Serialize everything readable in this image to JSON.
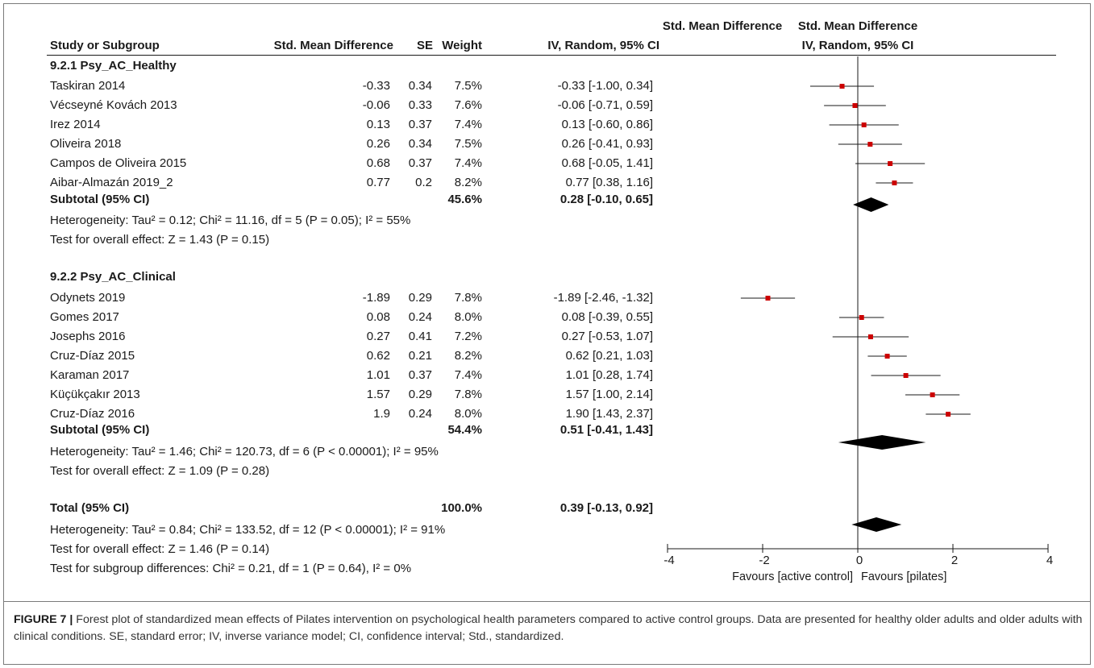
{
  "chart_data": {
    "type": "forest",
    "headers": {
      "study": "Study or Subgroup",
      "smd": "Std. Mean Difference",
      "se": "SE",
      "weight": "Weight",
      "ci_top": "Std. Mean Difference",
      "ci_bottom": "IV, Random, 95% CI",
      "plot_top": "Std. Mean Difference",
      "plot_bottom": "IV, Random, 95% CI"
    },
    "subgroups": [
      {
        "title": "9.2.1 Psy_AC_Healthy",
        "studies": [
          {
            "name": "Taskiran 2014",
            "smd": "-0.33",
            "se": "0.34",
            "weight": "7.5%",
            "ci_text": "-0.33 [-1.00, 0.34]",
            "est": -0.33,
            "lo": -1.0,
            "hi": 0.34
          },
          {
            "name": "Vécseyné Kovách 2013",
            "smd": "-0.06",
            "se": "0.33",
            "weight": "7.6%",
            "ci_text": "-0.06 [-0.71, 0.59]",
            "est": -0.06,
            "lo": -0.71,
            "hi": 0.59
          },
          {
            "name": "Irez 2014",
            "smd": "0.13",
            "se": "0.37",
            "weight": "7.4%",
            "ci_text": "0.13 [-0.60, 0.86]",
            "est": 0.13,
            "lo": -0.6,
            "hi": 0.86
          },
          {
            "name": "Oliveira 2018",
            "smd": "0.26",
            "se": "0.34",
            "weight": "7.5%",
            "ci_text": "0.26 [-0.41, 0.93]",
            "est": 0.26,
            "lo": -0.41,
            "hi": 0.93
          },
          {
            "name": "Campos de Oliveira 2015",
            "smd": "0.68",
            "se": "0.37",
            "weight": "7.4%",
            "ci_text": "0.68 [-0.05, 1.41]",
            "est": 0.68,
            "lo": -0.05,
            "hi": 1.41
          },
          {
            "name": "Aibar-Almazán 2019_2",
            "smd": "0.77",
            "se": "0.2",
            "weight": "8.2%",
            "ci_text": "0.77 [0.38, 1.16]",
            "est": 0.77,
            "lo": 0.38,
            "hi": 1.16
          }
        ],
        "subtotal": {
          "label": "Subtotal (95% CI)",
          "weight": "45.6%",
          "ci_text": "0.28 [-0.10, 0.65]",
          "est": 0.28,
          "lo": -0.1,
          "hi": 0.65
        },
        "heterogeneity": "Heterogeneity: Tau² = 0.12; Chi² = 11.16, df = 5 (P = 0.05); I² = 55%",
        "overall": "Test for overall effect: Z = 1.43 (P = 0.15)"
      },
      {
        "title": "9.2.2 Psy_AC_Clinical",
        "studies": [
          {
            "name": "Odynets 2019",
            "smd": "-1.89",
            "se": "0.29",
            "weight": "7.8%",
            "ci_text": "-1.89 [-2.46, -1.32]",
            "est": -1.89,
            "lo": -2.46,
            "hi": -1.32
          },
          {
            "name": "Gomes 2017",
            "smd": "0.08",
            "se": "0.24",
            "weight": "8.0%",
            "ci_text": "0.08 [-0.39, 0.55]",
            "est": 0.08,
            "lo": -0.39,
            "hi": 0.55
          },
          {
            "name": "Josephs 2016",
            "smd": "0.27",
            "se": "0.41",
            "weight": "7.2%",
            "ci_text": "0.27 [-0.53, 1.07]",
            "est": 0.27,
            "lo": -0.53,
            "hi": 1.07
          },
          {
            "name": "Cruz-Díaz 2015",
            "smd": "0.62",
            "se": "0.21",
            "weight": "8.2%",
            "ci_text": "0.62 [0.21, 1.03]",
            "est": 0.62,
            "lo": 0.21,
            "hi": 1.03
          },
          {
            "name": "Karaman 2017",
            "smd": "1.01",
            "se": "0.37",
            "weight": "7.4%",
            "ci_text": "1.01 [0.28, 1.74]",
            "est": 1.01,
            "lo": 0.28,
            "hi": 1.74
          },
          {
            "name": "Küçükçakır 2013",
            "smd": "1.57",
            "se": "0.29",
            "weight": "7.8%",
            "ci_text": "1.57 [1.00, 2.14]",
            "est": 1.57,
            "lo": 1.0,
            "hi": 2.14
          },
          {
            "name": "Cruz-Díaz 2016",
            "smd": "1.9",
            "se": "0.24",
            "weight": "8.0%",
            "ci_text": "1.90 [1.43, 2.37]",
            "est": 1.9,
            "lo": 1.43,
            "hi": 2.37
          }
        ],
        "subtotal": {
          "label": "Subtotal (95% CI)",
          "weight": "54.4%",
          "ci_text": "0.51 [-0.41, 1.43]",
          "est": 0.51,
          "lo": -0.41,
          "hi": 1.43
        },
        "heterogeneity": "Heterogeneity: Tau² = 1.46; Chi² = 120.73, df = 6 (P < 0.00001); I² = 95%",
        "overall": "Test for overall effect: Z = 1.09 (P = 0.28)"
      }
    ],
    "total": {
      "label": "Total (95% CI)",
      "weight": "100.0%",
      "ci_text": "0.39 [-0.13, 0.92]",
      "est": 0.39,
      "lo": -0.13,
      "hi": 0.92,
      "heterogeneity": "Heterogeneity: Tau² = 0.84; Chi² = 133.52, df = 12 (P < 0.00001); I² = 91%",
      "overall": "Test for overall effect: Z = 1.46 (P = 0.14)",
      "subgroup_diff": "Test for subgroup differences: Chi² = 0.21, df = 1 (P = 0.64), I² = 0%"
    },
    "x_axis": {
      "range": [
        -4,
        4
      ],
      "ticks": [
        -4,
        -2,
        0,
        2,
        4
      ],
      "tick_labels": [
        "-4",
        "-2",
        "0",
        "2",
        "4"
      ],
      "label_left": "Favours [active control]",
      "label_right": "Favours [pilates]"
    },
    "colors": {
      "marker": "#cc0000",
      "ink": "#1a1a1a"
    }
  },
  "caption": {
    "label": "FIGURE 7 |",
    "text": " Forest plot of standardized mean effects of Pilates intervention on psychological health parameters compared to active control groups. Data are presented for healthy older adults and older adults with clinical conditions. SE, standard error; IV, inverse variance model; CI, confidence interval; Std., standardized."
  }
}
